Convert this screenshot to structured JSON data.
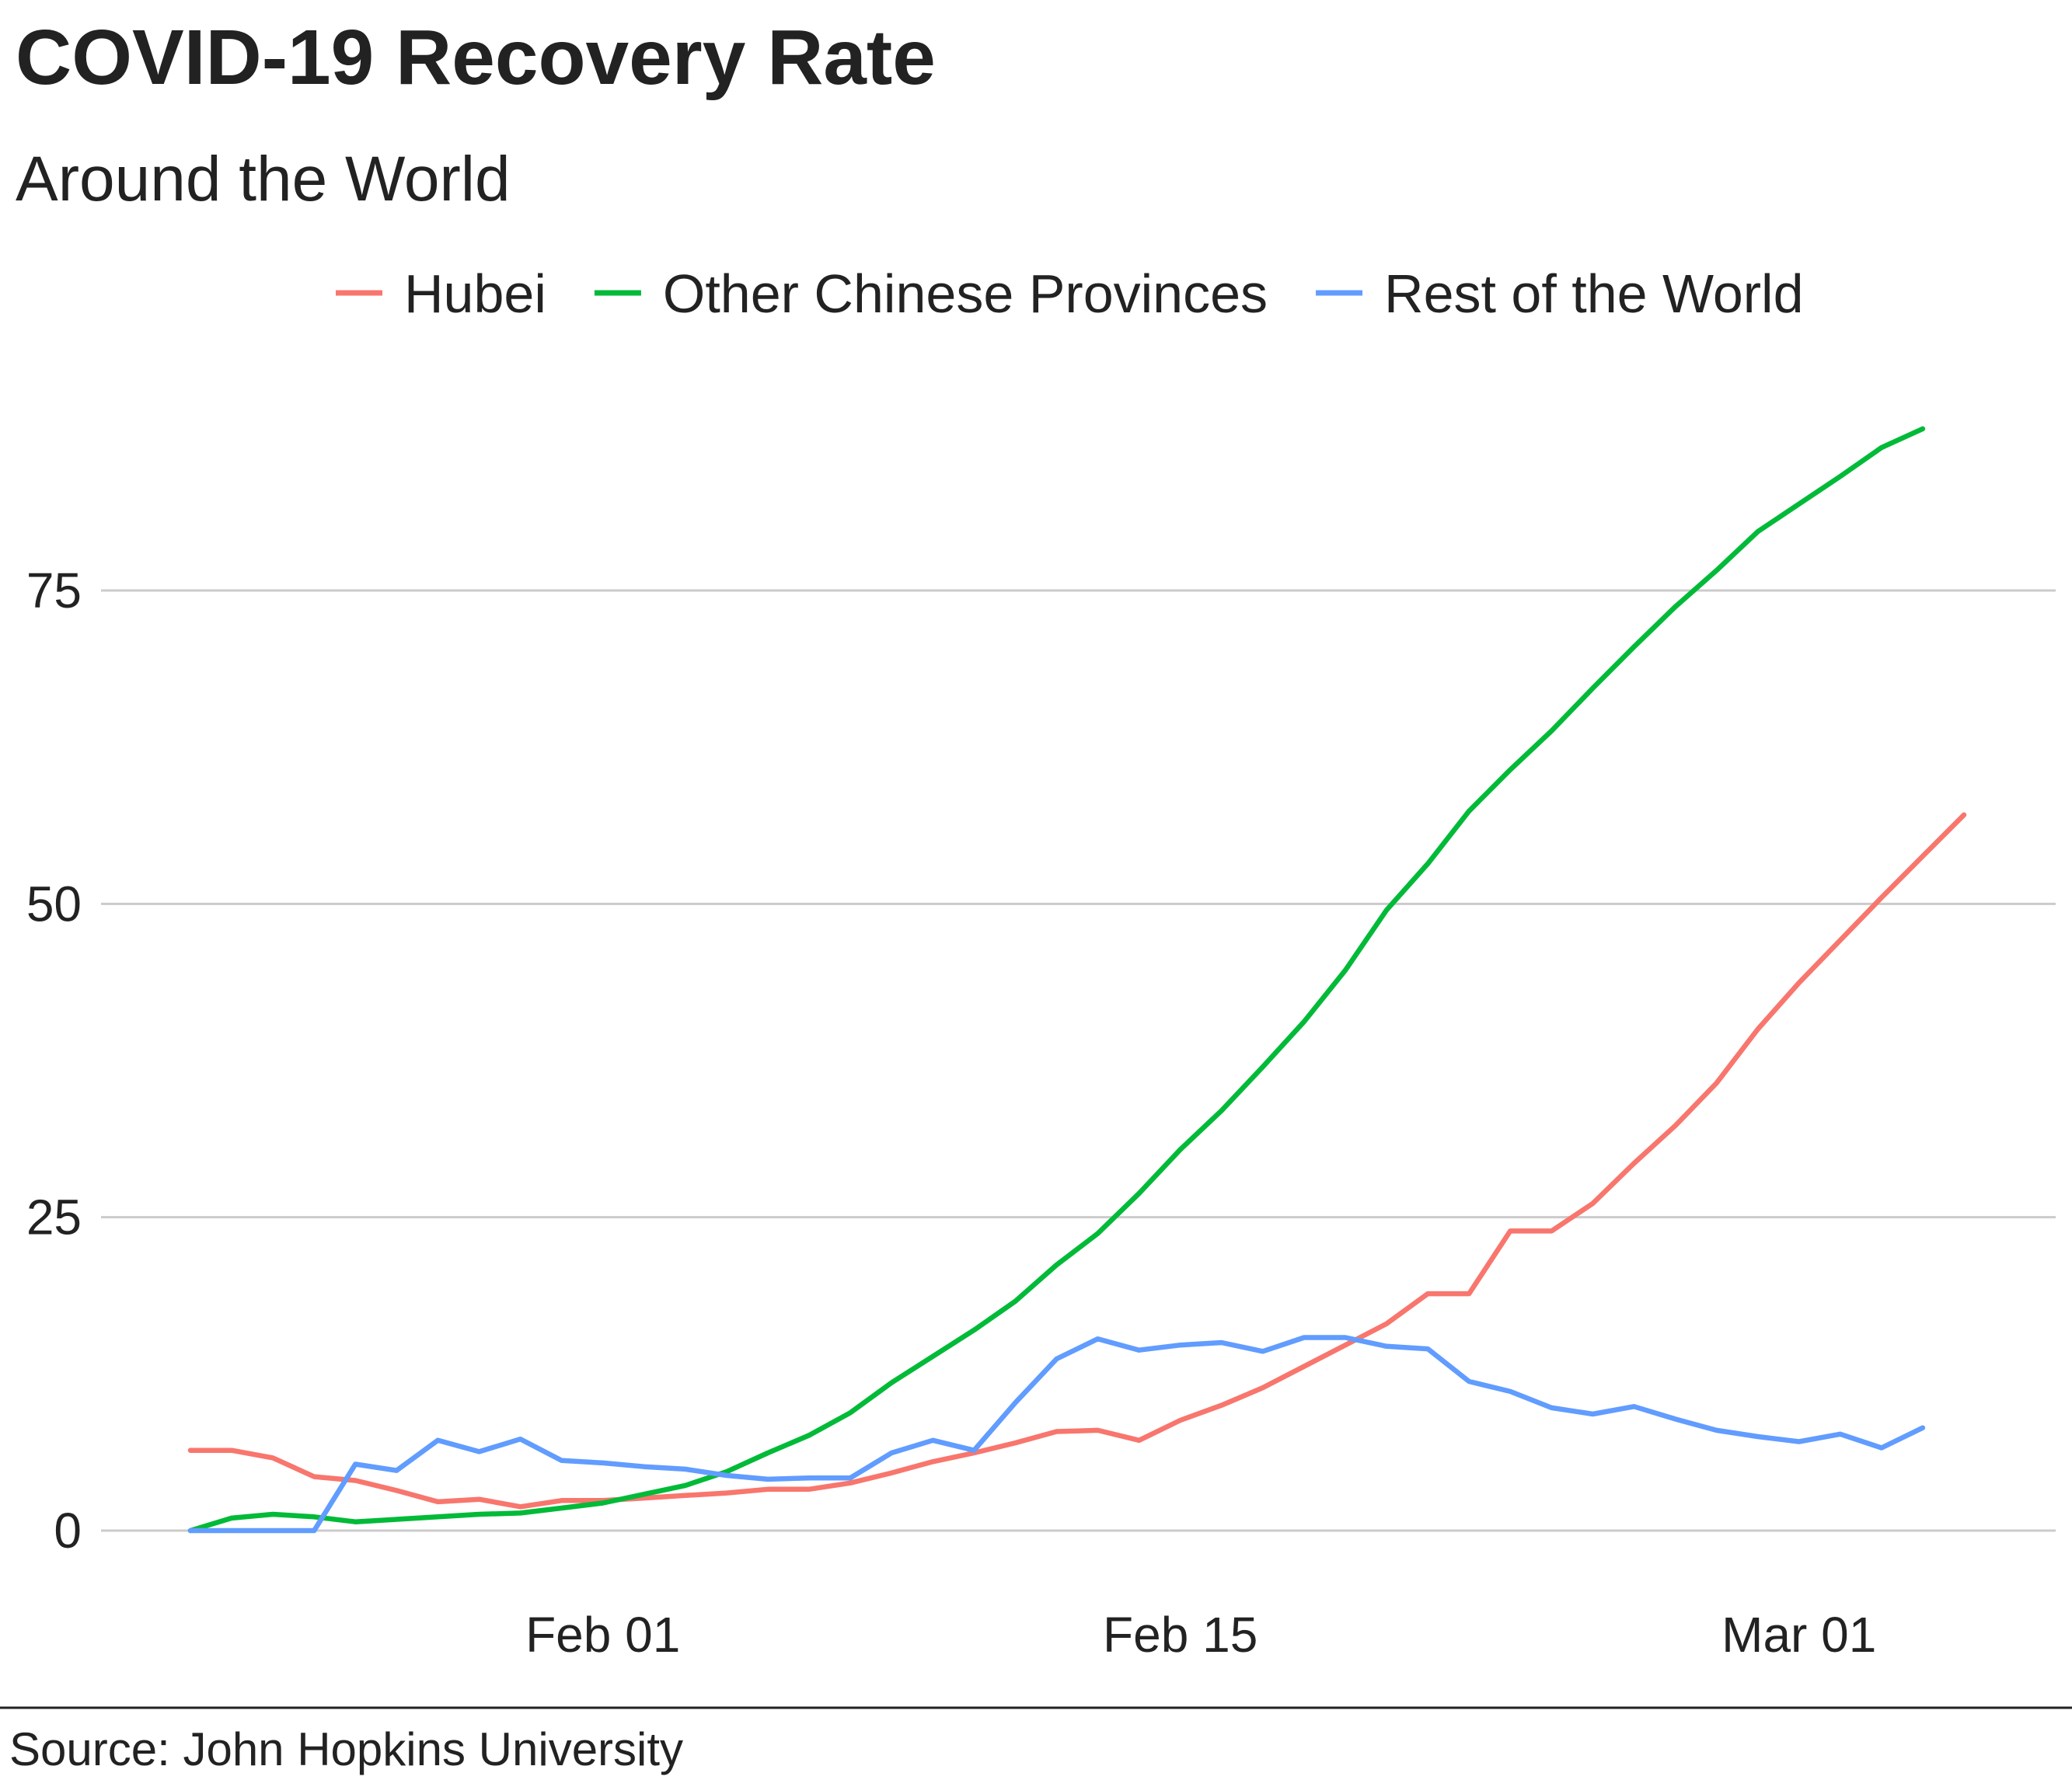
{
  "chart_data": {
    "type": "line",
    "title": "COVID-19 Recovery Rate",
    "subtitle": "Around the World",
    "caption": "Source: John Hopkins University",
    "xlabel": "",
    "ylabel": "",
    "x_start": "2020-01-22",
    "ylim": [
      -4,
      104
    ],
    "yticks": [
      0,
      25,
      50,
      75
    ],
    "xticks": [
      {
        "day": 10,
        "label": "Feb 01"
      },
      {
        "day": 24,
        "label": "Feb 15"
      },
      {
        "day": 39,
        "label": "Mar 01"
      }
    ],
    "grid": true,
    "legend_position": "top",
    "series": [
      {
        "name": "Hubei",
        "color": "#F8766D",
        "values": [
          6.4,
          6.4,
          5.8,
          4.3,
          4.0,
          3.2,
          2.3,
          2.5,
          1.9,
          2.4,
          2.4,
          2.6,
          2.8,
          3.0,
          3.3,
          3.3,
          3.8,
          4.6,
          5.5,
          6.2,
          7.0,
          7.9,
          8.0,
          7.2,
          8.8,
          10.0,
          11.4,
          13.1,
          14.8,
          16.5,
          18.9,
          18.9,
          23.9,
          23.9,
          26.1,
          29.3,
          32.3,
          35.7,
          40.0,
          43.7,
          47.1,
          50.5,
          53.8,
          57.1
        ]
      },
      {
        "name": "Other Chinese Provinces",
        "color": "#00BA38",
        "values": [
          0.0,
          1.0,
          1.3,
          1.1,
          0.7,
          0.9,
          1.1,
          1.3,
          1.4,
          1.8,
          2.2,
          2.9,
          3.6,
          4.7,
          6.2,
          7.6,
          9.4,
          11.8,
          13.9,
          16.0,
          18.3,
          21.2,
          23.7,
          26.9,
          30.4,
          33.5,
          37.0,
          40.6,
          44.7,
          49.5,
          53.2,
          57.4,
          60.7,
          63.8,
          67.2,
          70.5,
          73.7,
          76.6,
          79.7,
          81.9,
          84.1,
          86.4,
          87.9
        ]
      },
      {
        "name": "Rest of the World",
        "color": "#619CFF",
        "values": [
          0.0,
          0.0,
          0.0,
          0.0,
          5.3,
          4.8,
          7.2,
          6.3,
          7.3,
          5.6,
          5.4,
          5.1,
          4.9,
          4.4,
          4.1,
          4.2,
          4.2,
          6.2,
          7.2,
          6.4,
          10.2,
          13.7,
          15.3,
          14.4,
          14.8,
          15.0,
          14.3,
          15.4,
          15.4,
          14.7,
          14.5,
          11.9,
          11.1,
          9.8,
          9.3,
          9.9,
          8.9,
          8.0,
          7.5,
          7.1,
          7.7,
          6.6,
          8.2
        ]
      }
    ]
  }
}
